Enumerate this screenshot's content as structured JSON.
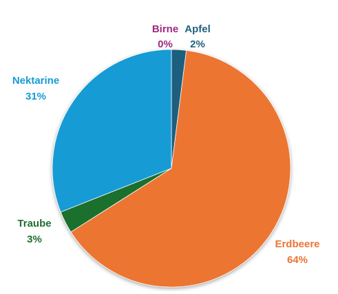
{
  "chart_data": {
    "type": "pie",
    "title": "",
    "slices": [
      {
        "category": "Apfel",
        "value": 2,
        "percent_label": "2%",
        "color": "#1f5f7f"
      },
      {
        "category": "Erdbeere",
        "value": 64,
        "percent_label": "64%",
        "color": "#ec7433"
      },
      {
        "category": "Traube",
        "value": 3,
        "percent_label": "3%",
        "color": "#1f6f2d"
      },
      {
        "category": "Nektarine",
        "value": 31,
        "percent_label": "31%",
        "color": "#169bd5"
      },
      {
        "category": "Birne",
        "value": 0,
        "percent_label": "0%",
        "color": "#a0287f"
      }
    ],
    "start_angle_deg": 0,
    "direction": "clockwise",
    "legend": "none",
    "data_labels": "category and percent, colored like slice"
  }
}
